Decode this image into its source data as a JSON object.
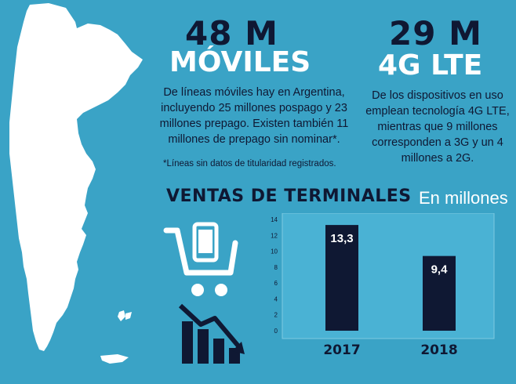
{
  "left_stat": {
    "number": "48 M",
    "label": "MÓVILES",
    "desc_lines": [
      "De líneas móviles hay en Argentina,",
      "incluyendo 25 millones pospago y 23",
      "millones prepago. Existen también 11",
      "millones de prepago sin nominar*."
    ],
    "footnote": "*Líneas sin datos de titularidad registrados."
  },
  "right_stat": {
    "number": "29 M",
    "label": "4G LTE",
    "desc_lines": [
      "De los dispositivos en uso",
      "emplean tecnología 4G LTE,",
      "mientras que 9 millones",
      "corresponden a 3G y un 4",
      "millones a 2G."
    ]
  },
  "section": {
    "title": "VENTAS DE TERMINALES",
    "subtitle": "En millones"
  },
  "icons": {
    "cart": "shopping-cart-phone-icon",
    "decline": "declining-bars-icon",
    "map": "argentina-map-icon"
  },
  "colors": {
    "background": "#3aa3c6",
    "bar": "#0f1833",
    "map": "#ffffff",
    "plot_bg": "#4ab2d4"
  },
  "chart_data": {
    "type": "bar",
    "categories": [
      "2017",
      "2018"
    ],
    "values": [
      13.3,
      9.4
    ],
    "value_labels": [
      "13,3",
      "9,4"
    ],
    "yticks": [
      0,
      2,
      4,
      6,
      8,
      10,
      12,
      14
    ],
    "ylim": [
      0,
      14
    ],
    "grid": false
  }
}
